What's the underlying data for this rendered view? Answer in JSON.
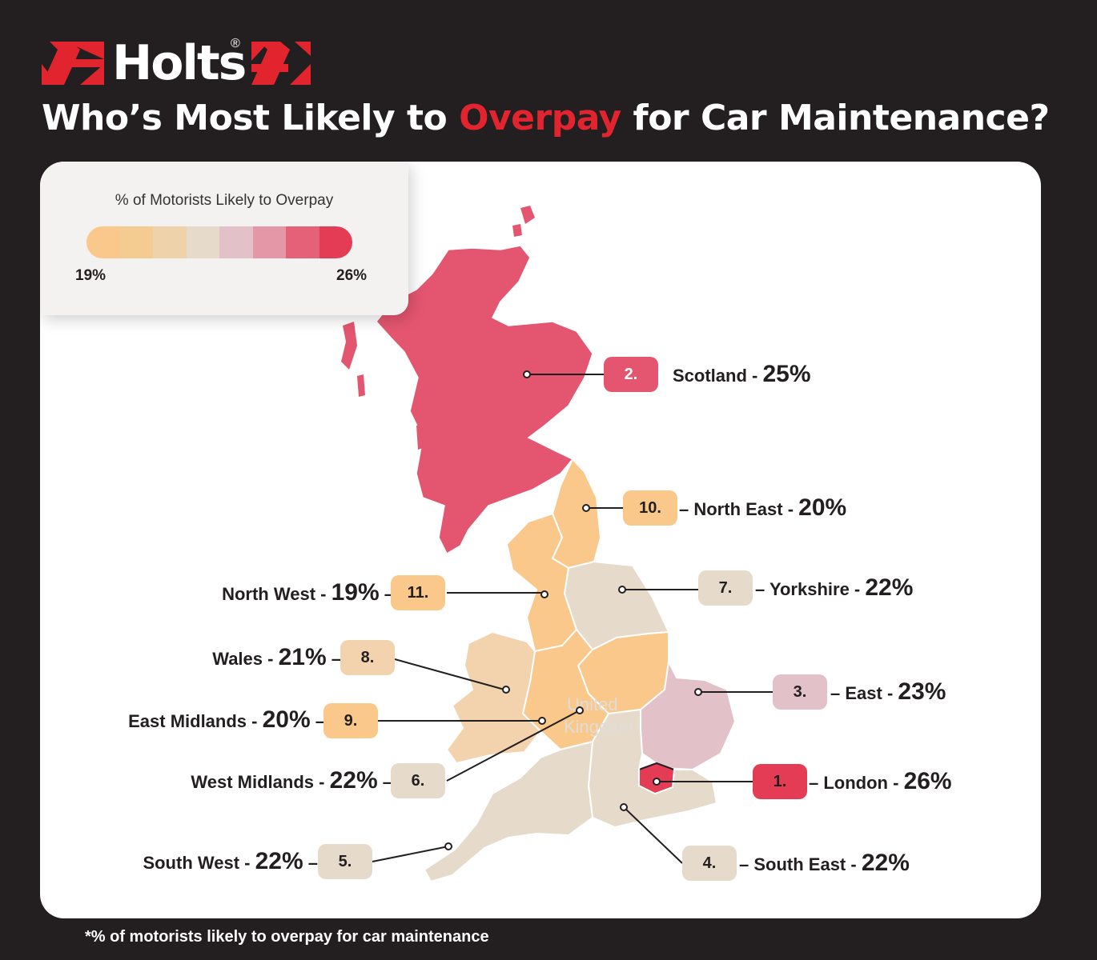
{
  "brand": {
    "logo_text": "Holts",
    "registered_mark": "®"
  },
  "title": {
    "before": "Who’s Most Likely to ",
    "highlight": "Overpay",
    "after": " for Car Maintenance?"
  },
  "legend": {
    "title": "% of Motorists Likely to Overpay",
    "min_label": "19%",
    "max_label": "26%",
    "scale_colors": [
      "#f9c88a",
      "#f4cc92",
      "#eed3aa",
      "#e6dacb",
      "#e2c1c9",
      "#e497a6",
      "#e46177",
      "#e43c54"
    ]
  },
  "map_watermark": [
    "United",
    "Kingdom"
  ],
  "regions": [
    {
      "rank": "1.",
      "name": "London",
      "value": "26%",
      "color": "#e43c54"
    },
    {
      "rank": "2.",
      "name": "Scotland",
      "value": "25%",
      "color": "#e4566f"
    },
    {
      "rank": "3.",
      "name": "East",
      "value": "23%",
      "color": "#e2c1c9"
    },
    {
      "rank": "4.",
      "name": "South East",
      "value": "22%",
      "color": "#e6dacb"
    },
    {
      "rank": "5.",
      "name": "South West",
      "value": "22%",
      "color": "#e6dacb"
    },
    {
      "rank": "6.",
      "name": "West Midlands",
      "value": "22%",
      "color": "#e6dacb"
    },
    {
      "rank": "7.",
      "name": "Yorkshire",
      "value": "22%",
      "color": "#e6dacb"
    },
    {
      "rank": "8.",
      "name": "Wales",
      "value": "21%",
      "color": "#f3d2ae"
    },
    {
      "rank": "9.",
      "name": "East Midlands",
      "value": "20%",
      "color": "#f9c88a"
    },
    {
      "rank": "10.",
      "name": "North East",
      "value": "20%",
      "color": "#f9c88a"
    },
    {
      "rank": "11.",
      "name": "North West",
      "value": "19%",
      "color": "#f9c88a"
    }
  ],
  "footnote": "*% of motorists likely to overpay for car maintenance"
}
